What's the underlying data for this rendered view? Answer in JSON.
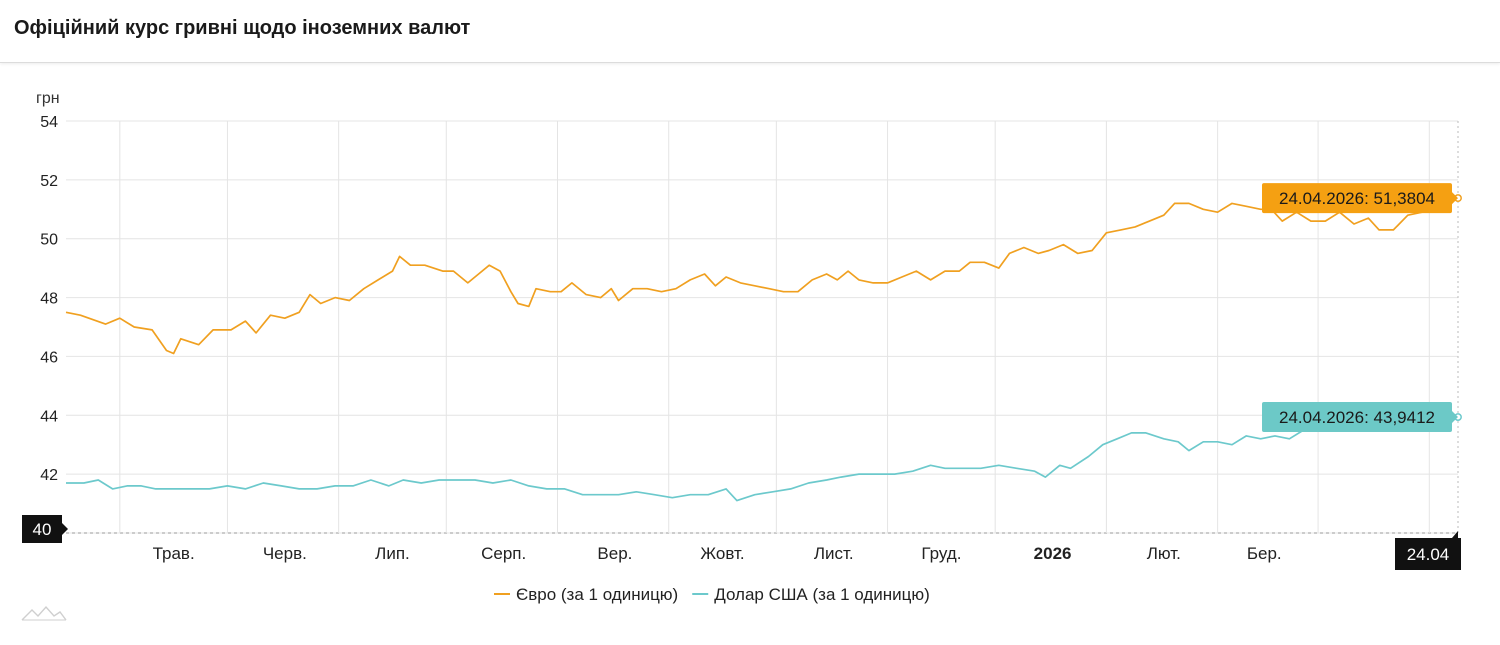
{
  "header": {
    "title": "Офіційний курс гривні щодо іноземних валют"
  },
  "chart_data": {
    "type": "line",
    "ylabel": "грн",
    "ylim": [
      40,
      54
    ],
    "yticks": [
      40,
      42,
      44,
      46,
      48,
      50,
      52,
      54
    ],
    "grid": true,
    "x_range": [
      "2025-04-01",
      "2026-04-24"
    ],
    "xticks": [
      {
        "date": "2025-05-01",
        "label": "Трав.",
        "bold": false
      },
      {
        "date": "2025-06-01",
        "label": "Черв.",
        "bold": false
      },
      {
        "date": "2025-07-01",
        "label": "Лип.",
        "bold": false
      },
      {
        "date": "2025-08-01",
        "label": "Серп.",
        "bold": false
      },
      {
        "date": "2025-09-01",
        "label": "Вер.",
        "bold": false
      },
      {
        "date": "2025-10-01",
        "label": "Жовт.",
        "bold": false
      },
      {
        "date": "2025-11-01",
        "label": "Лист.",
        "bold": false
      },
      {
        "date": "2025-12-01",
        "label": "Груд.",
        "bold": false
      },
      {
        "date": "2026-01-01",
        "label": "2026",
        "bold": true
      },
      {
        "date": "2026-02-01",
        "label": "Лют.",
        "bold": false
      },
      {
        "date": "2026-03-01",
        "label": "Бер.",
        "bold": false
      }
    ],
    "crosshair": {
      "x_label": "24.04",
      "y_label": "40"
    },
    "legend_position": "bottom-center",
    "series": [
      {
        "name": "Євро (за 1 одиницю)",
        "color": "#f0a020",
        "label_bg": "#f5a012",
        "tooltip": "24.04.2026: 51,3804",
        "points": [
          [
            "2025-04-01",
            47.5
          ],
          [
            "2025-04-05",
            47.4
          ],
          [
            "2025-04-12",
            47.1
          ],
          [
            "2025-04-16",
            47.3
          ],
          [
            "2025-04-20",
            47.0
          ],
          [
            "2025-04-25",
            46.9
          ],
          [
            "2025-04-29",
            46.2
          ],
          [
            "2025-05-01",
            46.1
          ],
          [
            "2025-05-03",
            46.6
          ],
          [
            "2025-05-08",
            46.4
          ],
          [
            "2025-05-12",
            46.9
          ],
          [
            "2025-05-17",
            46.9
          ],
          [
            "2025-05-21",
            47.2
          ],
          [
            "2025-05-24",
            46.8
          ],
          [
            "2025-05-28",
            47.4
          ],
          [
            "2025-06-01",
            47.3
          ],
          [
            "2025-06-05",
            47.5
          ],
          [
            "2025-06-08",
            48.1
          ],
          [
            "2025-06-11",
            47.8
          ],
          [
            "2025-06-15",
            48.0
          ],
          [
            "2025-06-19",
            47.9
          ],
          [
            "2025-06-23",
            48.3
          ],
          [
            "2025-06-27",
            48.6
          ],
          [
            "2025-07-01",
            48.9
          ],
          [
            "2025-07-03",
            49.4
          ],
          [
            "2025-07-06",
            49.1
          ],
          [
            "2025-07-10",
            49.1
          ],
          [
            "2025-07-15",
            48.9
          ],
          [
            "2025-07-18",
            48.9
          ],
          [
            "2025-07-22",
            48.5
          ],
          [
            "2025-07-25",
            48.8
          ],
          [
            "2025-07-28",
            49.1
          ],
          [
            "2025-07-31",
            48.9
          ],
          [
            "2025-08-03",
            48.2
          ],
          [
            "2025-08-05",
            47.8
          ],
          [
            "2025-08-08",
            47.7
          ],
          [
            "2025-08-10",
            48.3
          ],
          [
            "2025-08-14",
            48.2
          ],
          [
            "2025-08-17",
            48.2
          ],
          [
            "2025-08-20",
            48.5
          ],
          [
            "2025-08-24",
            48.1
          ],
          [
            "2025-08-28",
            48.0
          ],
          [
            "2025-08-31",
            48.3
          ],
          [
            "2025-09-02",
            47.9
          ],
          [
            "2025-09-06",
            48.3
          ],
          [
            "2025-09-10",
            48.3
          ],
          [
            "2025-09-14",
            48.2
          ],
          [
            "2025-09-18",
            48.3
          ],
          [
            "2025-09-22",
            48.6
          ],
          [
            "2025-09-26",
            48.8
          ],
          [
            "2025-09-29",
            48.4
          ],
          [
            "2025-10-02",
            48.7
          ],
          [
            "2025-10-06",
            48.5
          ],
          [
            "2025-10-10",
            48.4
          ],
          [
            "2025-10-14",
            48.3
          ],
          [
            "2025-10-18",
            48.2
          ],
          [
            "2025-10-22",
            48.2
          ],
          [
            "2025-10-26",
            48.6
          ],
          [
            "2025-10-30",
            48.8
          ],
          [
            "2025-11-02",
            48.6
          ],
          [
            "2025-11-05",
            48.9
          ],
          [
            "2025-11-08",
            48.6
          ],
          [
            "2025-11-12",
            48.5
          ],
          [
            "2025-11-16",
            48.5
          ],
          [
            "2025-11-20",
            48.7
          ],
          [
            "2025-11-24",
            48.9
          ],
          [
            "2025-11-28",
            48.6
          ],
          [
            "2025-12-02",
            48.9
          ],
          [
            "2025-12-06",
            48.9
          ],
          [
            "2025-12-09",
            49.2
          ],
          [
            "2025-12-13",
            49.2
          ],
          [
            "2025-12-17",
            49.0
          ],
          [
            "2025-12-20",
            49.5
          ],
          [
            "2025-12-24",
            49.7
          ],
          [
            "2025-12-28",
            49.5
          ],
          [
            "2025-12-31",
            49.6
          ],
          [
            "2026-01-04",
            49.8
          ],
          [
            "2026-01-08",
            49.5
          ],
          [
            "2026-01-12",
            49.6
          ],
          [
            "2026-01-16",
            50.2
          ],
          [
            "2026-01-20",
            50.3
          ],
          [
            "2026-01-24",
            50.4
          ],
          [
            "2026-01-28",
            50.6
          ],
          [
            "2026-02-01",
            50.8
          ],
          [
            "2026-02-04",
            51.2
          ],
          [
            "2026-02-08",
            51.2
          ],
          [
            "2026-02-12",
            51.0
          ],
          [
            "2026-02-16",
            50.9
          ],
          [
            "2026-02-20",
            51.2
          ],
          [
            "2026-02-24",
            51.1
          ],
          [
            "2026-02-28",
            51.0
          ],
          [
            "2026-03-03",
            51.0
          ],
          [
            "2026-03-06",
            50.6
          ],
          [
            "2026-03-10",
            50.9
          ],
          [
            "2026-03-14",
            50.6
          ],
          [
            "2026-03-18",
            50.6
          ],
          [
            "2026-03-22",
            50.9
          ],
          [
            "2026-03-26",
            50.5
          ],
          [
            "2026-03-30",
            50.7
          ],
          [
            "2026-04-02",
            50.3
          ],
          [
            "2026-04-06",
            50.3
          ],
          [
            "2026-04-10",
            50.8
          ],
          [
            "2026-04-14",
            50.9
          ],
          [
            "2026-04-18",
            51.1
          ],
          [
            "2026-04-22",
            51.3
          ],
          [
            "2026-04-24",
            51.38
          ]
        ]
      },
      {
        "name": "Долар США (за 1 одиницю)",
        "color": "#6cc9cc",
        "label_bg": "#6cc9c7",
        "tooltip": "24.04.2026: 43,9412",
        "points": [
          [
            "2025-04-01",
            41.7
          ],
          [
            "2025-04-06",
            41.7
          ],
          [
            "2025-04-10",
            41.8
          ],
          [
            "2025-04-14",
            41.5
          ],
          [
            "2025-04-18",
            41.6
          ],
          [
            "2025-04-22",
            41.6
          ],
          [
            "2025-04-26",
            41.5
          ],
          [
            "2025-05-01",
            41.5
          ],
          [
            "2025-05-06",
            41.5
          ],
          [
            "2025-05-11",
            41.5
          ],
          [
            "2025-05-16",
            41.6
          ],
          [
            "2025-05-21",
            41.5
          ],
          [
            "2025-05-26",
            41.7
          ],
          [
            "2025-05-31",
            41.6
          ],
          [
            "2025-06-05",
            41.5
          ],
          [
            "2025-06-10",
            41.5
          ],
          [
            "2025-06-15",
            41.6
          ],
          [
            "2025-06-20",
            41.6
          ],
          [
            "2025-06-25",
            41.8
          ],
          [
            "2025-06-30",
            41.6
          ],
          [
            "2025-07-04",
            41.8
          ],
          [
            "2025-07-09",
            41.7
          ],
          [
            "2025-07-14",
            41.8
          ],
          [
            "2025-07-19",
            41.8
          ],
          [
            "2025-07-24",
            41.8
          ],
          [
            "2025-07-29",
            41.7
          ],
          [
            "2025-08-03",
            41.8
          ],
          [
            "2025-08-08",
            41.6
          ],
          [
            "2025-08-13",
            41.5
          ],
          [
            "2025-08-18",
            41.5
          ],
          [
            "2025-08-23",
            41.3
          ],
          [
            "2025-08-28",
            41.3
          ],
          [
            "2025-09-02",
            41.3
          ],
          [
            "2025-09-07",
            41.4
          ],
          [
            "2025-09-12",
            41.3
          ],
          [
            "2025-09-17",
            41.2
          ],
          [
            "2025-09-22",
            41.3
          ],
          [
            "2025-09-27",
            41.3
          ],
          [
            "2025-10-02",
            41.5
          ],
          [
            "2025-10-05",
            41.1
          ],
          [
            "2025-10-10",
            41.3
          ],
          [
            "2025-10-15",
            41.4
          ],
          [
            "2025-10-20",
            41.5
          ],
          [
            "2025-10-25",
            41.7
          ],
          [
            "2025-10-30",
            41.8
          ],
          [
            "2025-11-03",
            41.9
          ],
          [
            "2025-11-08",
            42.0
          ],
          [
            "2025-11-13",
            42.0
          ],
          [
            "2025-11-18",
            42.0
          ],
          [
            "2025-11-23",
            42.1
          ],
          [
            "2025-11-28",
            42.3
          ],
          [
            "2025-12-02",
            42.2
          ],
          [
            "2025-12-07",
            42.2
          ],
          [
            "2025-12-12",
            42.2
          ],
          [
            "2025-12-17",
            42.3
          ],
          [
            "2025-12-22",
            42.2
          ],
          [
            "2025-12-27",
            42.1
          ],
          [
            "2025-12-30",
            41.9
          ],
          [
            "2026-01-03",
            42.3
          ],
          [
            "2026-01-06",
            42.2
          ],
          [
            "2026-01-11",
            42.6
          ],
          [
            "2026-01-15",
            43.0
          ],
          [
            "2026-01-19",
            43.2
          ],
          [
            "2026-01-23",
            43.4
          ],
          [
            "2026-01-27",
            43.4
          ],
          [
            "2026-02-01",
            43.2
          ],
          [
            "2026-02-05",
            43.1
          ],
          [
            "2026-02-08",
            42.8
          ],
          [
            "2026-02-12",
            43.1
          ],
          [
            "2026-02-16",
            43.1
          ],
          [
            "2026-02-20",
            43.0
          ],
          [
            "2026-02-24",
            43.3
          ],
          [
            "2026-02-28",
            43.2
          ],
          [
            "2026-03-04",
            43.3
          ],
          [
            "2026-03-08",
            43.2
          ],
          [
            "2026-03-12",
            43.5
          ],
          [
            "2026-03-16",
            43.6
          ],
          [
            "2026-03-20",
            43.7
          ],
          [
            "2026-03-24",
            43.7
          ],
          [
            "2026-03-28",
            43.8
          ],
          [
            "2026-04-02",
            43.8
          ],
          [
            "2026-04-06",
            43.8
          ],
          [
            "2026-04-10",
            43.9
          ],
          [
            "2026-04-14",
            43.9
          ],
          [
            "2026-04-18",
            43.9
          ],
          [
            "2026-04-24",
            43.94
          ]
        ]
      }
    ]
  }
}
